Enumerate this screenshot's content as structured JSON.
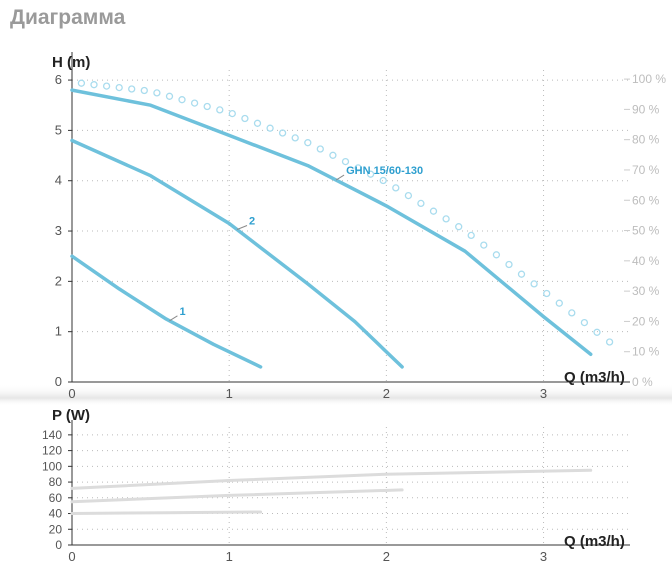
{
  "page": {
    "title": "Диаграмма"
  },
  "colors": {
    "curve": "#6ec1dc",
    "label": "#2e9fcf",
    "efficiency": "#a9dcee",
    "power": "#dcdcdc",
    "axis": "#333333",
    "grid": "#bbbbbb",
    "tick": "#555555",
    "right_tick": "#bdbdbd"
  },
  "chart_data": [
    {
      "type": "line",
      "title": "",
      "xlabel": "Q (m3/h)",
      "ylabel": "H (m)",
      "xlim": [
        0,
        3.55
      ],
      "ylim": [
        0,
        6.2
      ],
      "x_ticks": [
        "0",
        "1",
        "2",
        "3"
      ],
      "y_ticks": [
        "0",
        "1",
        "2",
        "3",
        "4",
        "5",
        "6"
      ],
      "y2_ticks": [
        "0 %",
        "10 %",
        "20 %",
        "30 %",
        "40 %",
        "50 %",
        "60 %",
        "70 %",
        "80 %",
        "90 %",
        "100 %"
      ],
      "grid": true,
      "series": [
        {
          "name": "GHN 15/60-130",
          "style": "solid",
          "x": [
            0,
            0.5,
            1.0,
            1.5,
            2.0,
            2.5,
            3.0,
            3.3
          ],
          "y": [
            5.8,
            5.5,
            4.9,
            4.3,
            3.5,
            2.6,
            1.3,
            0.55
          ]
        },
        {
          "name": "2",
          "style": "solid",
          "x": [
            0,
            0.5,
            1.0,
            1.5,
            1.8,
            2.1
          ],
          "y": [
            4.8,
            4.1,
            3.15,
            1.95,
            1.2,
            0.3
          ]
        },
        {
          "name": "1",
          "style": "solid",
          "x": [
            0,
            0.3,
            0.6,
            0.9,
            1.2
          ],
          "y": [
            2.5,
            1.85,
            1.25,
            0.75,
            0.3
          ]
        },
        {
          "name": "",
          "style": "dotted",
          "axis": "right",
          "x": [
            0,
            0.5,
            1.0,
            1.5,
            2.0,
            2.5,
            3.0,
            3.5
          ],
          "y": [
            99,
            96,
            89,
            79,
            66,
            50,
            30,
            10
          ]
        }
      ]
    },
    {
      "type": "line",
      "title": "",
      "xlabel": "Q (m3/h)",
      "ylabel": "P (W)",
      "xlim": [
        0,
        3.55
      ],
      "ylim": [
        0,
        150
      ],
      "x_ticks": [
        "0",
        "1",
        "2",
        "3"
      ],
      "y_ticks": [
        "0",
        "20",
        "40",
        "60",
        "80",
        "100",
        "120",
        "140"
      ],
      "grid": true,
      "series": [
        {
          "name": "",
          "x": [
            0,
            1.0,
            2.0,
            3.3
          ],
          "y": [
            72,
            82,
            90,
            95
          ]
        },
        {
          "name": "",
          "x": [
            0,
            1.0,
            2.1
          ],
          "y": [
            55,
            63,
            70
          ]
        },
        {
          "name": "",
          "x": [
            0,
            0.6,
            1.2
          ],
          "y": [
            40,
            41,
            42
          ]
        }
      ]
    }
  ]
}
